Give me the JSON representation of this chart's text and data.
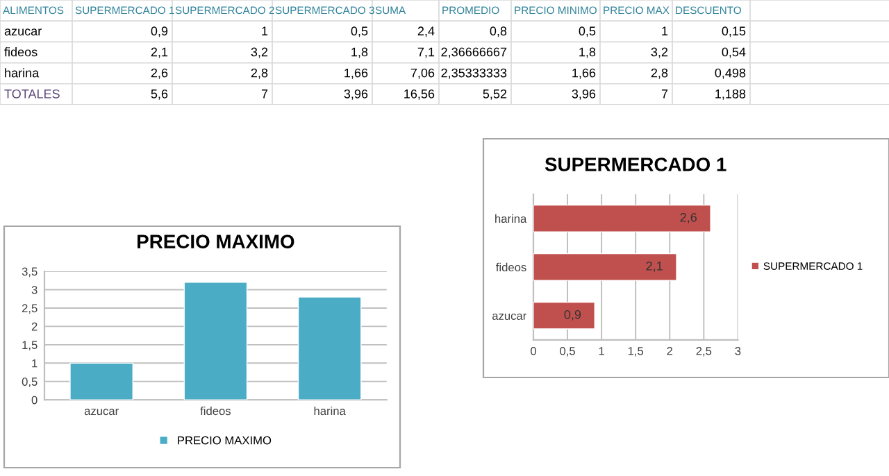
{
  "chart_data": [
    {
      "type": "other",
      "categories": [
        "ALIMENTOS",
        "SUPERMERCADO 1",
        "SUPERMERCADO 2",
        "SUPERMERCADO 3",
        "SUMA",
        "PROMEDIO",
        "PRECIO MINIMO",
        "PRECIO MAX",
        "DESCUENTO"
      ],
      "cell_labels": [
        [
          "azucar",
          "0,9",
          "1",
          "0,5",
          "2,4",
          "0,8",
          "0,5",
          "1",
          "0,15"
        ],
        [
          "fideos",
          "2,1",
          "3,2",
          "1,8",
          "7,1",
          "2,36666667",
          "1,8",
          "3,2",
          "0,54"
        ],
        [
          "harina",
          "2,6",
          "2,8",
          "1,66",
          "7,06",
          "2,35333333",
          "1,66",
          "2,8",
          "0,498"
        ],
        [
          "TOTALES",
          "5,6",
          "7",
          "3,96",
          "16,56",
          "5,52",
          "3,96",
          "7",
          "1,188"
        ]
      ]
    },
    {
      "type": "bar",
      "orientation": "horizontal",
      "title": "SUPERMERCADO 1",
      "categories": [
        "harina",
        "fideos",
        "azucar"
      ],
      "series": [
        {
          "name": "SUPERMERCADO 1",
          "color": "#c0504d",
          "values": [
            2.6,
            2.1,
            0.9
          ],
          "value_labels": [
            "2,6",
            "2,1",
            "0,9"
          ]
        }
      ],
      "xlim": [
        0,
        3
      ],
      "xticks": [
        0,
        {
          "value": 0.5,
          "label": "0,5"
        },
        1,
        {
          "value": 1.5,
          "label": "1,5"
        },
        2,
        {
          "value": 2.5,
          "label": "2,5"
        },
        3
      ],
      "grid": "x",
      "legend": "right"
    },
    {
      "type": "bar",
      "title": "PRECIO MAXIMO",
      "categories": [
        "azucar",
        "fideos",
        "harina"
      ],
      "series": [
        {
          "name": "PRECIO MAXIMO",
          "color": "#4bacc6",
          "values": [
            1,
            3.2,
            2.8
          ]
        }
      ],
      "ylim": [
        0,
        3.5
      ],
      "yticks": [
        0,
        {
          "value": 0.5,
          "label": "0,5"
        },
        1,
        {
          "value": 1.5,
          "label": "1,5"
        },
        2,
        {
          "value": 2.5,
          "label": "2,5"
        },
        3,
        {
          "value": 3.5,
          "label": "3,5"
        }
      ],
      "grid": "y",
      "legend": "bottom"
    }
  ]
}
